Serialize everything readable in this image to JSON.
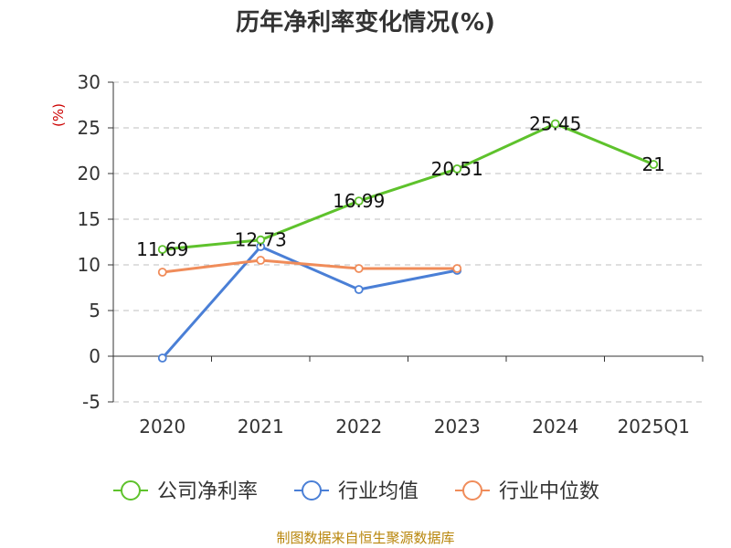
{
  "chart_data": {
    "type": "line",
    "title": "历年净利率变化情况(%)",
    "ylabel": "(%)",
    "xlabel": "",
    "categories": [
      "2020",
      "2021",
      "2022",
      "2023",
      "2024",
      "2025Q1"
    ],
    "ylim": [
      -5,
      30
    ],
    "yticks": [
      30,
      25,
      20,
      15,
      10,
      5,
      0,
      -5
    ],
    "grid": true,
    "legend_position": "bottom",
    "series": [
      {
        "name": "公司净利率",
        "color": "#5ec22c",
        "values": [
          11.69,
          12.73,
          16.99,
          20.51,
          25.45,
          21
        ],
        "labels": [
          "11.69",
          "12.73",
          "16.99",
          "20.51",
          "25.45",
          "21"
        ]
      },
      {
        "name": "行业均值",
        "color": "#4a7fd6",
        "values": [
          -0.2,
          12.0,
          7.3,
          9.4,
          null,
          null
        ]
      },
      {
        "name": "行业中位数",
        "color": "#f08c5a",
        "values": [
          9.2,
          10.5,
          9.6,
          9.6,
          null,
          null
        ]
      }
    ]
  },
  "source": "制图数据来自恒生聚源数据库"
}
